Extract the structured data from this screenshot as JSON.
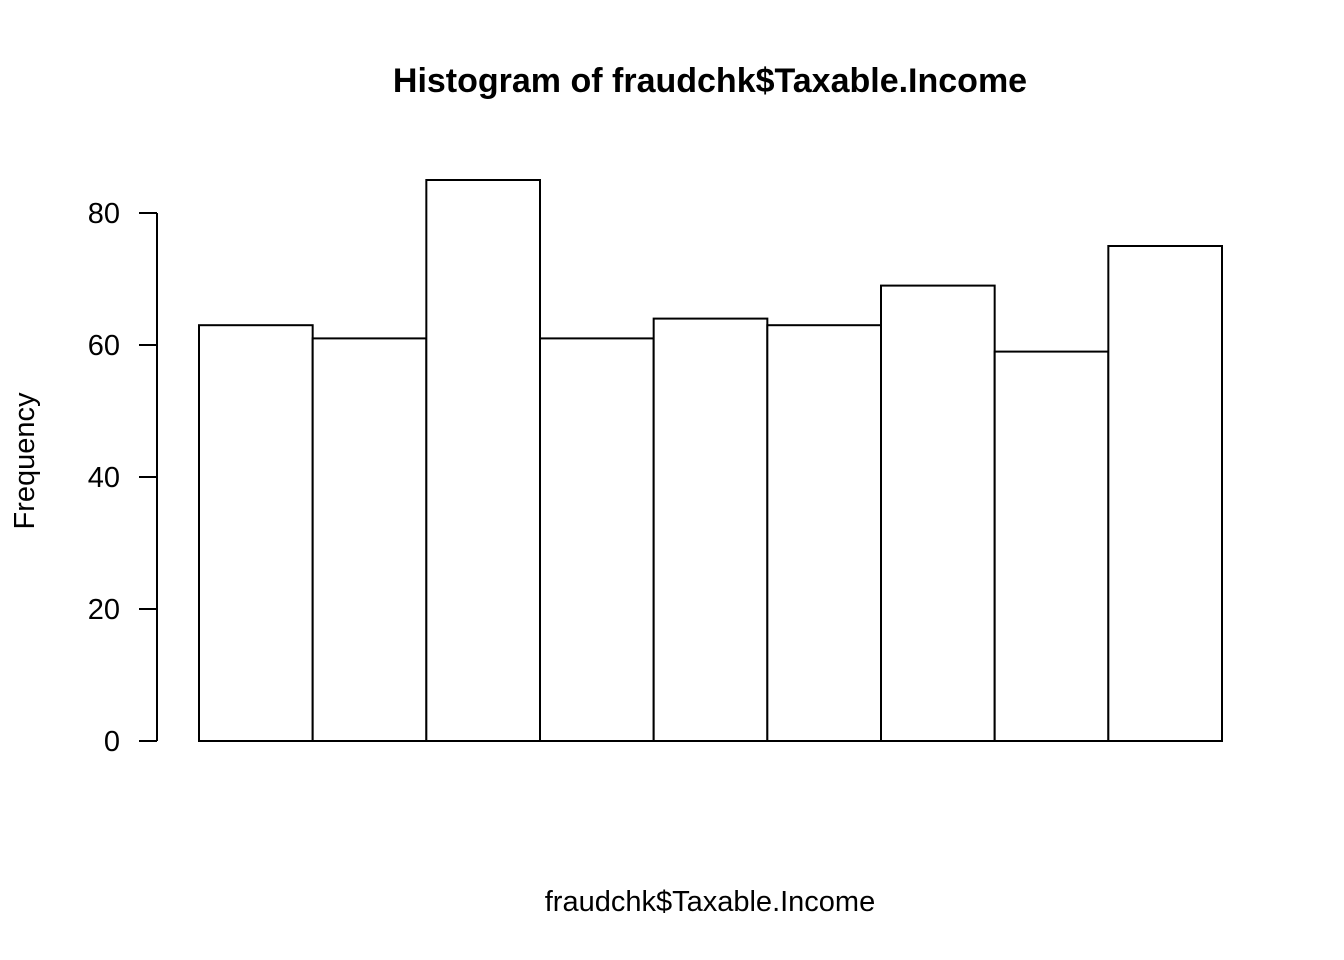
{
  "chart_data": {
    "type": "bar",
    "title": "Histogram of fraudchk$Taxable.Income",
    "xlabel": "fraudchk$Taxable.Income",
    "ylabel": "Frequency",
    "values": [
      63,
      61,
      85,
      61,
      64,
      63,
      69,
      59,
      75
    ],
    "yticks": [
      0,
      20,
      40,
      60,
      80
    ],
    "ylim": [
      0,
      85
    ],
    "grid": false,
    "legend": "none",
    "bar_fill": "#ffffff",
    "bar_stroke": "#000000"
  }
}
